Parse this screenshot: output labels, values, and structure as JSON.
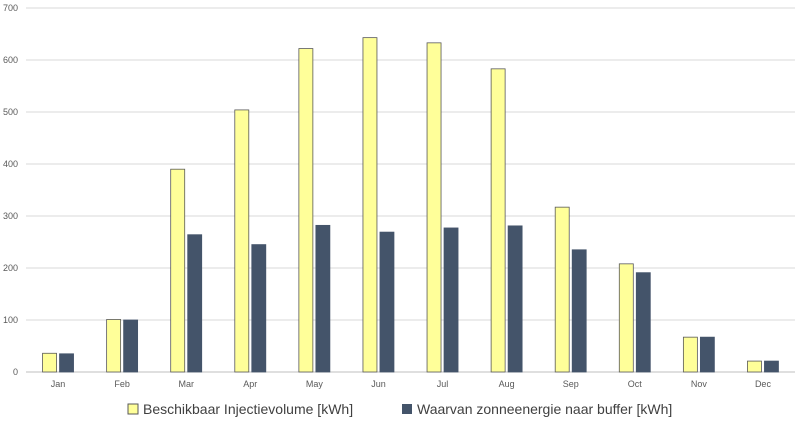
{
  "chart_data": {
    "type": "bar",
    "categories": [
      "Jan",
      "Feb",
      "Mar",
      "Apr",
      "May",
      "Jun",
      "Jul",
      "Aug",
      "Sep",
      "Oct",
      "Nov",
      "Dec"
    ],
    "series": [
      {
        "name": "Beschikbaar Injectievolume [kWh]",
        "color": "#FFFF99",
        "stroke": "#595959",
        "values": [
          36,
          101,
          390,
          504,
          622,
          643,
          633,
          583,
          317,
          208,
          67,
          21
        ]
      },
      {
        "name": "Waarvan zonneenergie naar buffer [kWh]",
        "color": "#44546A",
        "stroke": "#44546A",
        "values": [
          35,
          100,
          264,
          245,
          282,
          269,
          277,
          281,
          235,
          191,
          67,
          21
        ]
      }
    ],
    "yticks": [
      "0",
      "100",
      "200",
      "300",
      "400",
      "500",
      "600",
      "700"
    ],
    "ylim": [
      0,
      700
    ],
    "grid": true,
    "legend_position": "bottom"
  }
}
